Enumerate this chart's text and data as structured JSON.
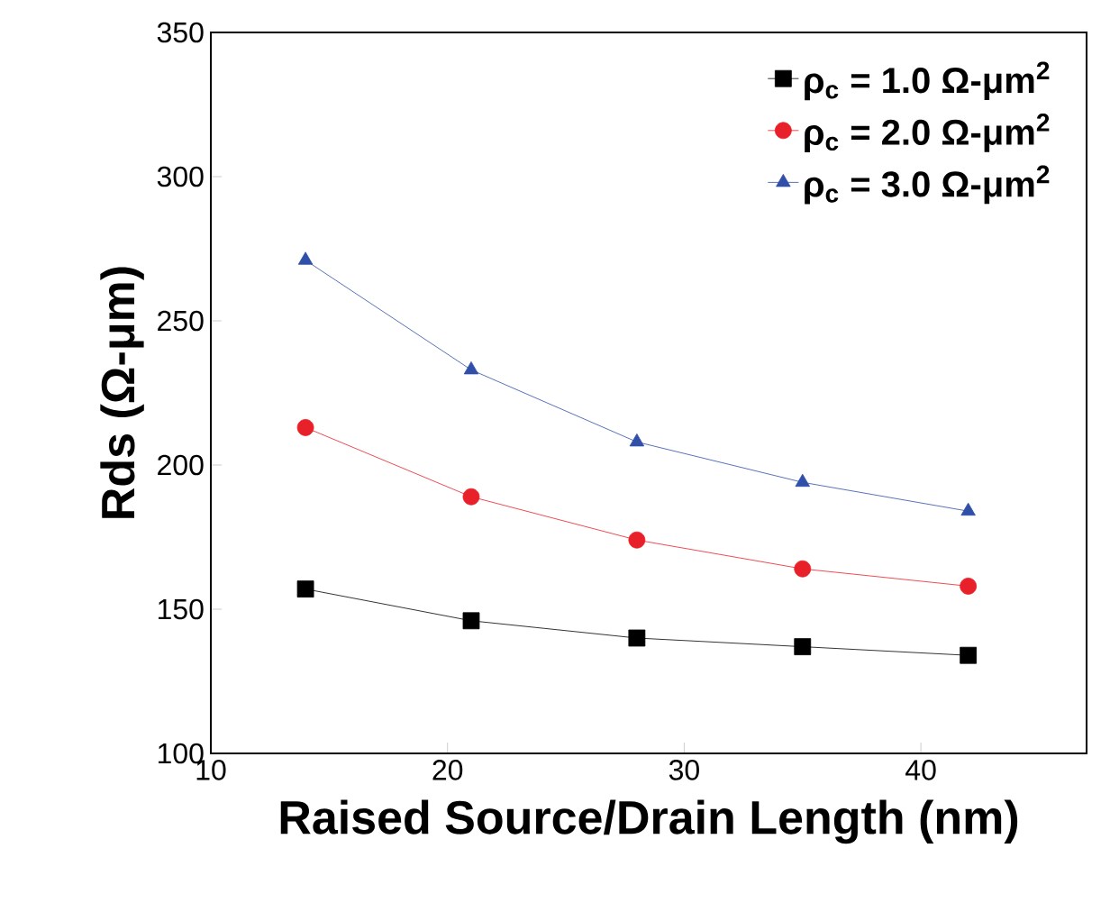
{
  "chart_data": {
    "type": "line",
    "xlabel": "Raised Source/Drain Length (nm)",
    "ylabel": "Rds (Ω-μm)",
    "x": [
      14,
      21,
      28,
      35,
      42
    ],
    "series": [
      {
        "name": "ρ$_{c}$ = 1.0 Ω-μm$^{2}$",
        "color": "#000000",
        "marker": "square",
        "values": [
          157,
          146,
          140,
          137,
          134
        ]
      },
      {
        "name": "ρ$_{c}$ = 2.0 Ω-μm$^{2}$",
        "color": "#e8202a",
        "marker": "circle",
        "values": [
          213,
          189,
          174,
          164,
          158
        ]
      },
      {
        "name": "ρ$_{c}$ = 3.0 Ω-μm$^{2}$",
        "color": "#2f4fa8",
        "marker": "triangle",
        "values": [
          271,
          233,
          208,
          194,
          184
        ]
      }
    ],
    "xlim": [
      10,
      47
    ],
    "ylim": [
      100,
      350
    ],
    "xticks": [
      10,
      20,
      30,
      40
    ],
    "yticks": [
      100,
      150,
      200,
      250,
      300,
      350
    ],
    "legend": "top right",
    "line_style": "solid"
  }
}
